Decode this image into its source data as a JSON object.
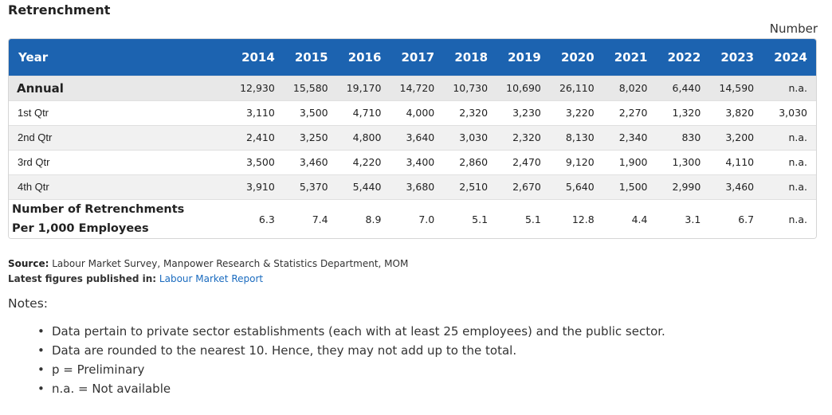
{
  "title": "Retrenchment",
  "unit": "Number",
  "table": {
    "header_first": "Year",
    "years": [
      "2014",
      "2015",
      "2016",
      "2017",
      "2018",
      "2019",
      "2020",
      "2021",
      "2022",
      "2023",
      "2024"
    ],
    "rows": [
      {
        "label": "Annual",
        "values": [
          "12,930",
          "15,580",
          "19,170",
          "14,720",
          "10,730",
          "10,690",
          "26,110",
          "8,020",
          "6,440",
          "14,590",
          "n.a."
        ]
      },
      {
        "label": "1st Qtr",
        "values": [
          "3,110",
          "3,500",
          "4,710",
          "4,000",
          "2,320",
          "3,230",
          "3,220",
          "2,270",
          "1,320",
          "3,820",
          "3,030"
        ]
      },
      {
        "label": "2nd Qtr",
        "values": [
          "2,410",
          "3,250",
          "4,800",
          "3,640",
          "3,030",
          "2,320",
          "8,130",
          "2,340",
          "830",
          "3,200",
          "n.a."
        ]
      },
      {
        "label": "3rd Qtr",
        "values": [
          "3,500",
          "3,460",
          "4,220",
          "3,400",
          "2,860",
          "2,470",
          "9,120",
          "1,900",
          "1,300",
          "4,110",
          "n.a."
        ]
      },
      {
        "label": "4th Qtr",
        "values": [
          "3,910",
          "5,370",
          "5,440",
          "3,680",
          "2,510",
          "2,670",
          "5,640",
          "1,500",
          "2,990",
          "3,460",
          "n.a."
        ]
      },
      {
        "label_line1": "Number of Retrenchments",
        "label_line2": "Per 1,000 Employees",
        "values": [
          "6.3",
          "7.4",
          "8.9",
          "7.0",
          "5.1",
          "5.1",
          "12.8",
          "4.4",
          "3.1",
          "6.7",
          "n.a."
        ]
      }
    ]
  },
  "source": {
    "label": "Source:",
    "text": "Labour Market Survey, Manpower Research & Statistics Department, MOM"
  },
  "latest": {
    "label": "Latest figures published in:",
    "link_text": "Labour Market Report"
  },
  "notes": {
    "heading": "Notes:",
    "bullet_glyph": "•",
    "items": [
      "Data pertain to private sector establishments (each with at least 25 employees) and the public sector.",
      "Data are rounded to the nearest 10. Hence, they may not add up to the total.",
      "p = Preliminary",
      "n.a. = Not available"
    ]
  }
}
